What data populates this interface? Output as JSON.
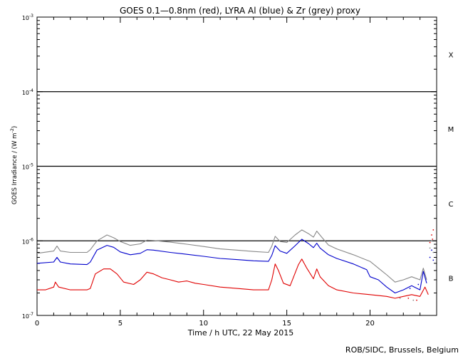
{
  "chart_data": {
    "type": "line",
    "title": "GOES 0.1—0.8nm (red), LYRA Al (blue) & Zr (grey) proxy",
    "xlabel": "Time / h UTC, 22 May 2015",
    "ylabel": "GOES Irradiance / (W m",
    "ylabel_exp": "-2",
    "ylabel_close": ")",
    "credit": "ROB/SIDC, Brussels, Belgium",
    "x_range": [
      0,
      24
    ],
    "y_log_range": [
      -7,
      -3
    ],
    "x_ticks": [
      {
        "value": 0,
        "label": "0"
      },
      {
        "value": 5,
        "label": "5"
      },
      {
        "value": 10,
        "label": "10"
      },
      {
        "value": 15,
        "label": "15"
      },
      {
        "value": 20,
        "label": "20"
      }
    ],
    "y_ticks": [
      {
        "exp": -7,
        "base": "10",
        "sup": "-7"
      },
      {
        "exp": -6,
        "base": "10",
        "sup": "-6"
      },
      {
        "exp": -5,
        "base": "10",
        "sup": "-5"
      },
      {
        "exp": -4,
        "base": "10",
        "sup": "-4"
      },
      {
        "exp": -3,
        "base": "10",
        "sup": "-3"
      }
    ],
    "flare_class_lines": [
      -6,
      -5,
      -4
    ],
    "flare_classes": [
      {
        "label": "B",
        "exp": -6.5
      },
      {
        "label": "C",
        "exp": -5.5
      },
      {
        "label": "M",
        "exp": -4.5
      },
      {
        "label": "X",
        "exp": -3.5
      }
    ],
    "series": [
      {
        "name": "GOES 0.1-0.8nm",
        "color": "#e00000",
        "points": [
          [
            0,
            2.2e-07
          ],
          [
            0.5,
            2.2e-07
          ],
          [
            1.0,
            2.4e-07
          ],
          [
            1.1,
            2.8e-07
          ],
          [
            1.3,
            2.4e-07
          ],
          [
            2.0,
            2.2e-07
          ],
          [
            3.0,
            2.2e-07
          ],
          [
            3.2,
            2.3e-07
          ],
          [
            3.5,
            3.6e-07
          ],
          [
            4.0,
            4.2e-07
          ],
          [
            4.4,
            4.2e-07
          ],
          [
            4.8,
            3.6e-07
          ],
          [
            5.2,
            2.8e-07
          ],
          [
            5.8,
            2.6e-07
          ],
          [
            6.2,
            3e-07
          ],
          [
            6.6,
            3.8e-07
          ],
          [
            7.0,
            3.6e-07
          ],
          [
            7.5,
            3.2e-07
          ],
          [
            8.0,
            3e-07
          ],
          [
            8.5,
            2.8e-07
          ],
          [
            9.0,
            2.9e-07
          ],
          [
            9.5,
            2.7e-07
          ],
          [
            10.0,
            2.6e-07
          ],
          [
            11.0,
            2.4e-07
          ],
          [
            12.0,
            2.3e-07
          ],
          [
            13.0,
            2.2e-07
          ],
          [
            13.9,
            2.2e-07
          ],
          [
            14.1,
            3e-07
          ],
          [
            14.3,
            4.9e-07
          ],
          [
            14.5,
            4e-07
          ],
          [
            14.8,
            2.7e-07
          ],
          [
            15.2,
            2.5e-07
          ],
          [
            15.7,
            4.8e-07
          ],
          [
            15.9,
            5.7e-07
          ],
          [
            16.2,
            4.3e-07
          ],
          [
            16.6,
            3.1e-07
          ],
          [
            16.8,
            4.2e-07
          ],
          [
            17.0,
            3.3e-07
          ],
          [
            17.5,
            2.5e-07
          ],
          [
            18.0,
            2.2e-07
          ],
          [
            19.0,
            2e-07
          ],
          [
            20.0,
            1.9e-07
          ],
          [
            21.0,
            1.8e-07
          ],
          [
            21.5,
            1.7e-07
          ],
          [
            22.0,
            1.8e-07
          ],
          [
            22.5,
            1.9e-07
          ],
          [
            23.0,
            1.8e-07
          ],
          [
            23.3,
            2.4e-07
          ],
          [
            23.5,
            1.9e-07
          ]
        ],
        "scatter": [
          [
            23.6,
            9.5e-07
          ],
          [
            23.7,
            1.2e-06
          ],
          [
            23.8,
            1.4e-06
          ],
          [
            23.75,
            1.05e-06
          ],
          [
            22.3,
            1.7e-07
          ],
          [
            22.8,
            1.6e-07
          ]
        ]
      },
      {
        "name": "LYRA Al proxy",
        "color": "#0000cc",
        "points": [
          [
            0,
            5e-07
          ],
          [
            1.0,
            5.2e-07
          ],
          [
            1.2,
            6e-07
          ],
          [
            1.4,
            5.2e-07
          ],
          [
            2.0,
            4.9e-07
          ],
          [
            3.0,
            4.8e-07
          ],
          [
            3.2,
            5.2e-07
          ],
          [
            3.6,
            7.5e-07
          ],
          [
            4.2,
            8.7e-07
          ],
          [
            4.6,
            8.2e-07
          ],
          [
            5.0,
            7.1e-07
          ],
          [
            5.6,
            6.5e-07
          ],
          [
            6.2,
            6.8e-07
          ],
          [
            6.6,
            7.6e-07
          ],
          [
            7.0,
            7.5e-07
          ],
          [
            8.0,
            7e-07
          ],
          [
            9.0,
            6.6e-07
          ],
          [
            10.0,
            6.2e-07
          ],
          [
            11.0,
            5.8e-07
          ],
          [
            12.0,
            5.6e-07
          ],
          [
            13.0,
            5.4e-07
          ],
          [
            13.9,
            5.3e-07
          ],
          [
            14.1,
            6.4e-07
          ],
          [
            14.3,
            8.6e-07
          ],
          [
            14.6,
            7.3e-07
          ],
          [
            15.0,
            6.8e-07
          ],
          [
            15.5,
            8.6e-07
          ],
          [
            15.9,
            1.05e-06
          ],
          [
            16.3,
            9.2e-07
          ],
          [
            16.6,
            8.1e-07
          ],
          [
            16.8,
            9.3e-07
          ],
          [
            17.0,
            8e-07
          ],
          [
            17.5,
            6.5e-07
          ],
          [
            18.0,
            5.8e-07
          ],
          [
            19.0,
            4.9e-07
          ],
          [
            19.8,
            4.1e-07
          ],
          [
            20.0,
            3.3e-07
          ],
          [
            20.5,
            3e-07
          ],
          [
            21.0,
            2.4e-07
          ],
          [
            21.5,
            2e-07
          ],
          [
            22.0,
            2.2e-07
          ],
          [
            22.5,
            2.5e-07
          ],
          [
            23.0,
            2.2e-07
          ],
          [
            23.2,
            3.9e-07
          ],
          [
            23.4,
            2.7e-07
          ]
        ],
        "scatter": [
          [
            23.6,
            6e-07
          ],
          [
            23.7,
            7.5e-07
          ],
          [
            23.8,
            5.5e-07
          ],
          [
            22.4,
            2.3e-07
          ],
          [
            22.9,
            2.6e-07
          ]
        ]
      },
      {
        "name": "LYRA Zr proxy",
        "color": "#888888",
        "points": [
          [
            0,
            6.8e-07
          ],
          [
            1.0,
            7.3e-07
          ],
          [
            1.2,
            8.5e-07
          ],
          [
            1.4,
            7.3e-07
          ],
          [
            2.0,
            7e-07
          ],
          [
            3.0,
            7e-07
          ],
          [
            3.2,
            7.6e-07
          ],
          [
            3.6,
            1e-06
          ],
          [
            4.2,
            1.2e-06
          ],
          [
            4.6,
            1.1e-06
          ],
          [
            5.0,
            9.8e-07
          ],
          [
            5.6,
            8.7e-07
          ],
          [
            6.2,
            9.1e-07
          ],
          [
            6.6,
            1.02e-06
          ],
          [
            7.0,
            1.01e-06
          ],
          [
            8.0,
            9.6e-07
          ],
          [
            9.0,
            9e-07
          ],
          [
            10.0,
            8.4e-07
          ],
          [
            11.0,
            7.8e-07
          ],
          [
            12.0,
            7.5e-07
          ],
          [
            13.0,
            7.2e-07
          ],
          [
            13.9,
            7e-07
          ],
          [
            14.1,
            8.5e-07
          ],
          [
            14.3,
            1.15e-06
          ],
          [
            14.6,
            9.8e-07
          ],
          [
            15.0,
            9.5e-07
          ],
          [
            15.5,
            1.2e-06
          ],
          [
            15.9,
            1.4e-06
          ],
          [
            16.3,
            1.25e-06
          ],
          [
            16.6,
            1.12e-06
          ],
          [
            16.8,
            1.35e-06
          ],
          [
            17.1,
            1.12e-06
          ],
          [
            17.5,
            8.8e-07
          ],
          [
            18.0,
            7.8e-07
          ],
          [
            19.0,
            6.5e-07
          ],
          [
            20.0,
            5.3e-07
          ],
          [
            20.5,
            4.3e-07
          ],
          [
            21.0,
            3.5e-07
          ],
          [
            21.5,
            2.8e-07
          ],
          [
            22.0,
            3e-07
          ],
          [
            22.5,
            3.3e-07
          ],
          [
            23.0,
            3e-07
          ],
          [
            23.2,
            4.3e-07
          ],
          [
            23.4,
            3e-07
          ]
        ],
        "scatter": [
          [
            23.6,
            8e-07
          ],
          [
            23.7,
            1e-06
          ],
          [
            23.8,
            7e-07
          ],
          [
            21.8,
            1.7e-07
          ],
          [
            22.6,
            1.6e-07
          ]
        ]
      }
    ]
  }
}
